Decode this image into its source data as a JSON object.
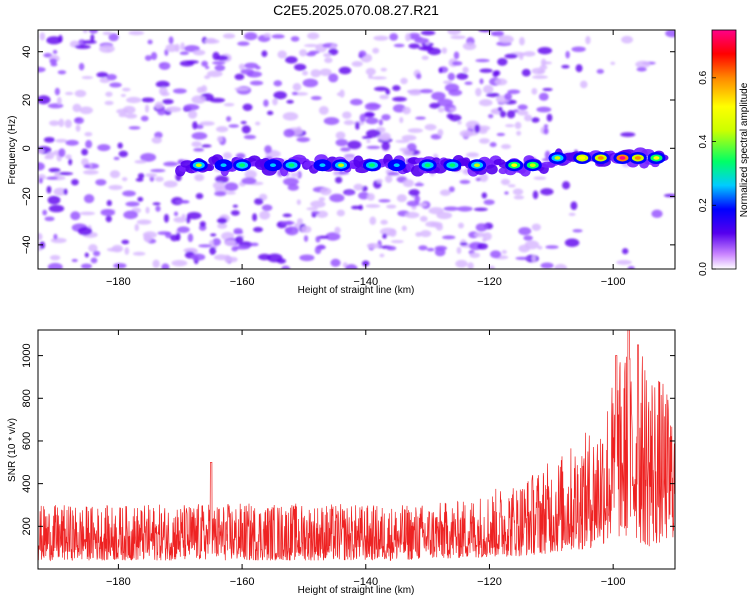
{
  "figure_title": "C2E5.2025.070.08.27.R21",
  "chart_data": [
    {
      "type": "heatmap",
      "title": "C2E5.2025.070.08.27.R21",
      "xlabel": "Height of straight line (km)",
      "ylabel": "Frequency (Hz)",
      "xlim": [
        -193,
        -90
      ],
      "ylim": [
        -50,
        49
      ],
      "x_ticks": [
        -180,
        -160,
        -140,
        -120,
        -100
      ],
      "y_ticks": [
        -40,
        -20,
        0,
        20,
        40
      ],
      "colorbar": {
        "label": "Normalized spectral amplitude",
        "range": [
          0.0,
          0.75
        ],
        "ticks": [
          0.0,
          0.2,
          0.4,
          0.6
        ],
        "colors": [
          "#ffffff",
          "#cc88ff",
          "#5500ee",
          "#0000ff",
          "#00ccff",
          "#00ff66",
          "#ccff00",
          "#ffff00",
          "#ff8800",
          "#ff0000",
          "#ff0088"
        ]
      },
      "signal_band": {
        "frequency_center_hz": -7,
        "x_start_km": -170,
        "x_end_km": -92,
        "features": [
          {
            "x": -167,
            "amp": 0.35
          },
          {
            "x": -163,
            "amp": 0.25
          },
          {
            "x": -160,
            "amp": 0.28
          },
          {
            "x": -155,
            "amp": 0.2
          },
          {
            "x": -152,
            "amp": 0.3
          },
          {
            "x": -147,
            "amp": 0.25
          },
          {
            "x": -144,
            "amp": 0.35
          },
          {
            "x": -139,
            "amp": 0.3
          },
          {
            "x": -135,
            "amp": 0.25
          },
          {
            "x": -130,
            "amp": 0.3
          },
          {
            "x": -126,
            "amp": 0.28
          },
          {
            "x": -122,
            "amp": 0.35
          },
          {
            "x": -116,
            "amp": 0.45
          },
          {
            "x": -113,
            "amp": 0.4
          },
          {
            "x": -109,
            "amp": 0.35
          },
          {
            "x": -105,
            "amp": 0.5
          },
          {
            "x": -102,
            "amp": 0.55
          },
          {
            "x": -98.5,
            "amp": 0.72
          },
          {
            "x": -96,
            "amp": 0.55
          },
          {
            "x": -93,
            "amp": 0.45
          }
        ]
      },
      "background_noise": "scattered purple/violet speckle, denser left of -110 km, sparse right of -105 km"
    },
    {
      "type": "line",
      "xlabel": "Height of straight line (km)",
      "ylabel": "SNR (10 * v/v)",
      "xlim": [
        -193,
        -90
      ],
      "ylim": [
        0,
        1120
      ],
      "x_ticks": [
        -180,
        -160,
        -140,
        -120,
        -100
      ],
      "y_ticks": [
        200,
        400,
        600,
        800,
        1000
      ],
      "series": [
        {
          "name": "SNR",
          "color": "#ee2222",
          "envelope": [
            {
              "x": -193,
              "min": 40,
              "max": 300
            },
            {
              "x": -180,
              "min": 40,
              "max": 300
            },
            {
              "x": -165,
              "min": 40,
              "max": 310
            },
            {
              "x": -150,
              "min": 40,
              "max": 310
            },
            {
              "x": -135,
              "min": 40,
              "max": 300
            },
            {
              "x": -125,
              "min": 50,
              "max": 320
            },
            {
              "x": -115,
              "min": 60,
              "max": 420
            },
            {
              "x": -108,
              "min": 80,
              "max": 550
            },
            {
              "x": -103,
              "min": 100,
              "max": 680
            },
            {
              "x": -98,
              "min": 150,
              "max": 1050
            },
            {
              "x": -94,
              "min": 100,
              "max": 1000
            },
            {
              "x": -90,
              "min": 150,
              "max": 760
            }
          ],
          "peaks": [
            {
              "x": -165,
              "y": 500
            },
            {
              "x": -97.5,
              "y": 1120
            },
            {
              "x": -96,
              "y": 1050
            },
            {
              "x": -99.5,
              "y": 1000
            }
          ]
        }
      ]
    }
  ]
}
